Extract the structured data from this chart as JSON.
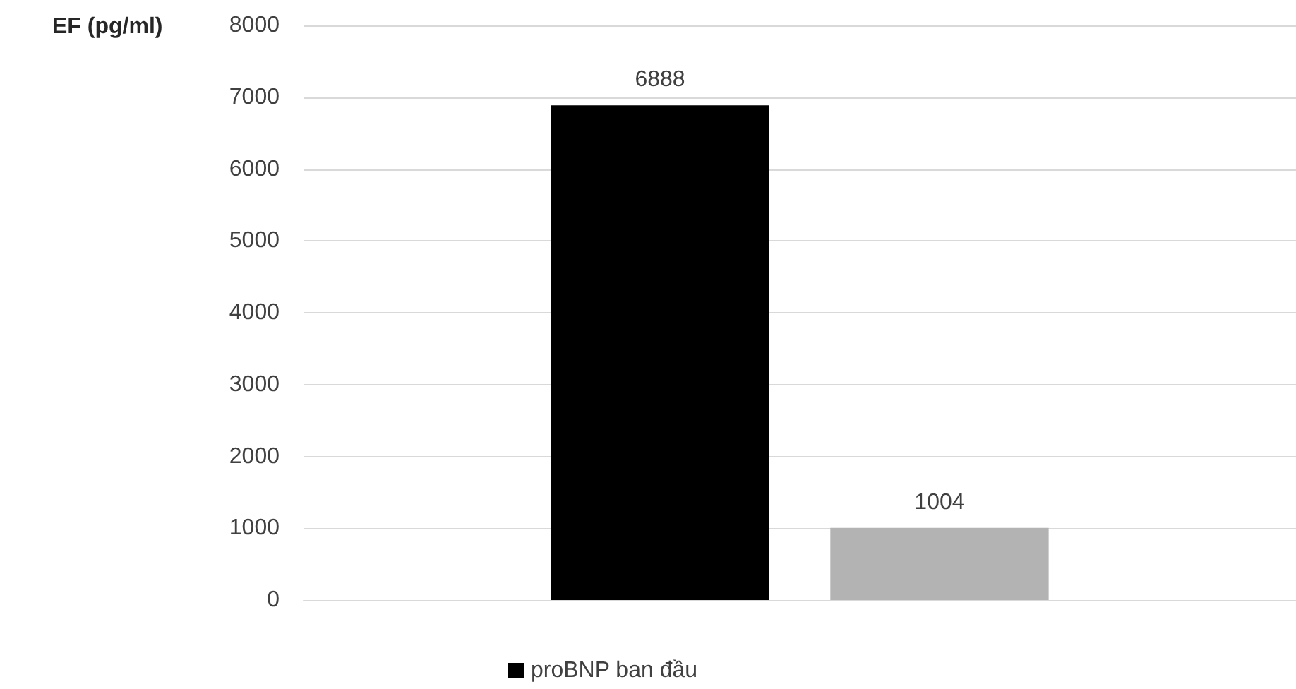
{
  "chart_data": {
    "type": "bar",
    "ylabel": "EF (pg/ml)",
    "categories": [
      null
    ],
    "series": [
      {
        "name": "proBNP ban đầu",
        "color": "#000000",
        "values": [
          6888
        ]
      },
      {
        "color": "#b3b3b3",
        "values": [
          1004
        ]
      }
    ],
    "ylim": [
      0,
      8000
    ],
    "yticks": [
      0,
      1000,
      2000,
      3000,
      4000,
      5000,
      6000,
      7000,
      8000
    ],
    "grid": "y",
    "legend": "bottom",
    "data_labels": true
  }
}
